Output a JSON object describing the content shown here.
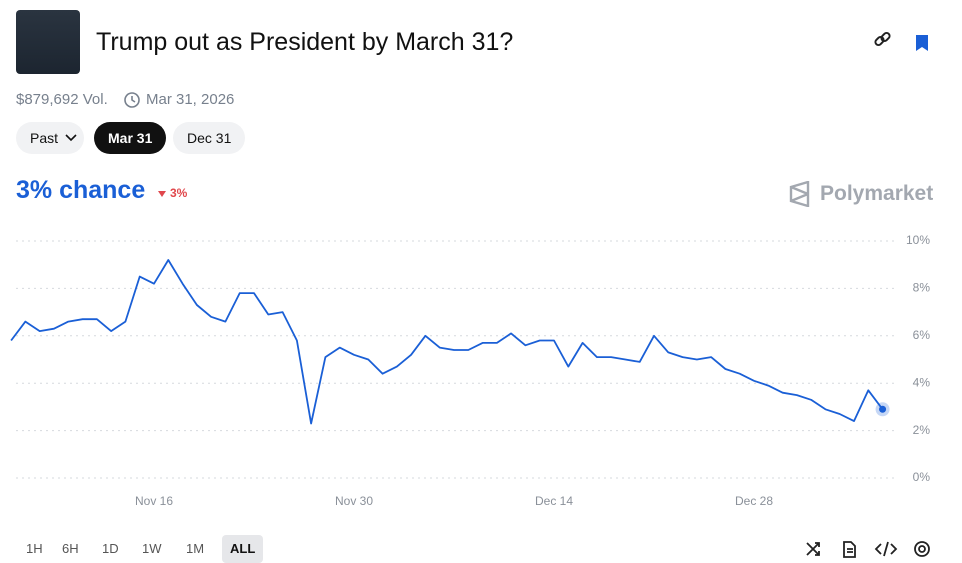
{
  "header": {
    "title": "Trump out as President by March 31?",
    "volume": "$879,692 Vol.",
    "end_date": "Mar 31, 2026"
  },
  "date_tabs": [
    "Past",
    "Mar 31",
    "Dec 31"
  ],
  "chart_data": {
    "type": "line",
    "headline": "3% chance",
    "change": "3%",
    "brand": "Polymarket",
    "color": "#1a5fd6",
    "grid": true,
    "x": [
      "Nov 6",
      "Nov 7",
      "Nov 8",
      "Nov 9",
      "Nov 10",
      "Nov 11",
      "Nov 12",
      "Nov 13",
      "Nov 14",
      "Nov 15",
      "Nov 16",
      "Nov 17",
      "Nov 18",
      "Nov 19",
      "Nov 20",
      "Nov 21",
      "Nov 22",
      "Nov 23",
      "Nov 24",
      "Nov 25",
      "Nov 26",
      "Nov 27",
      "Nov 28",
      "Nov 29",
      "Nov 30",
      "Dec 1",
      "Dec 2",
      "Dec 3",
      "Dec 4",
      "Dec 5",
      "Dec 6",
      "Dec 7",
      "Dec 8",
      "Dec 9",
      "Dec 10",
      "Dec 11",
      "Dec 12",
      "Dec 13",
      "Dec 14",
      "Dec 15",
      "Dec 16",
      "Dec 17",
      "Dec 18",
      "Dec 19",
      "Dec 20",
      "Dec 21",
      "Dec 22",
      "Dec 23",
      "Dec 24",
      "Dec 25",
      "Dec 26",
      "Dec 27",
      "Dec 28",
      "Dec 29",
      "Dec 30",
      "Dec 31",
      "Jan 1",
      "Jan 2",
      "Jan 3",
      "Jan 4",
      "Jan 5",
      "Jan 6"
    ],
    "values": [
      5.8,
      6.6,
      6.2,
      6.3,
      6.6,
      6.7,
      6.7,
      6.2,
      6.6,
      8.5,
      8.2,
      9.2,
      8.2,
      7.3,
      6.8,
      6.6,
      7.8,
      7.8,
      6.9,
      7.0,
      5.8,
      2.3,
      5.1,
      5.5,
      5.2,
      5.0,
      4.4,
      4.7,
      5.2,
      6.0,
      5.5,
      5.4,
      5.4,
      5.7,
      5.7,
      6.1,
      5.6,
      5.8,
      5.8,
      4.7,
      5.7,
      5.1,
      5.1,
      5.0,
      4.9,
      6.0,
      5.3,
      5.1,
      5.0,
      5.1,
      4.6,
      4.4,
      4.1,
      3.9,
      3.6,
      3.5,
      3.3,
      2.9,
      2.7,
      2.4,
      3.7,
      2.9
    ],
    "xticks": [
      "Nov 16",
      "Nov 30",
      "Dec 14",
      "Dec 28"
    ],
    "ylim": [
      0,
      10
    ],
    "yticks": [
      {
        "value": 0,
        "label": "0%"
      },
      {
        "value": 2,
        "label": "2%"
      },
      {
        "value": 4,
        "label": "4%"
      },
      {
        "value": 6,
        "label": "6%"
      },
      {
        "value": 8,
        "label": "8%"
      },
      {
        "value": 10,
        "label": "10%"
      }
    ]
  },
  "range_buttons": [
    "1H",
    "6H",
    "1D",
    "1W",
    "1M",
    "ALL"
  ]
}
